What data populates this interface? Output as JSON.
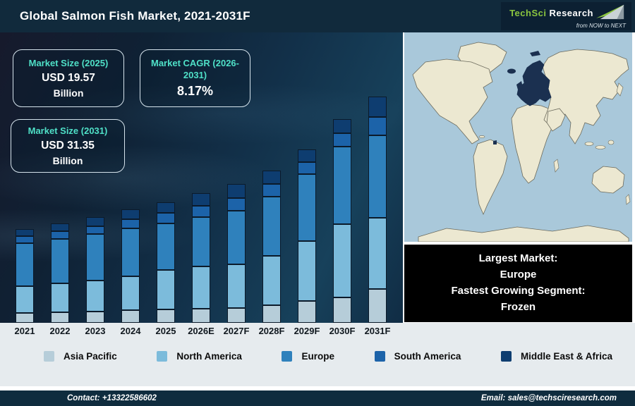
{
  "header": {
    "title": "Global Salmon Fish Market, 2021-2031F",
    "logo": {
      "brand_primary": "TechSci",
      "brand_secondary": "Research",
      "tagline": "from NOW to NEXT"
    }
  },
  "stats": {
    "market_size_2025": {
      "title": "Market Size (2025)",
      "value": "USD 19.57",
      "unit": "Billion"
    },
    "market_cagr": {
      "title": "Market CAGR (2026-2031)",
      "value": "8.17%"
    },
    "market_size_2031": {
      "title": "Market Size (2031)",
      "value": "USD 31.35",
      "unit": "Billion"
    }
  },
  "chart_data": {
    "type": "bar",
    "stacked": true,
    "title": "Global Salmon Fish Market, 2021-2031F",
    "xlabel": "",
    "ylabel": "",
    "y_axis_shown": false,
    "grid": false,
    "legend_position": "bottom",
    "values_unit": "relative height units (chart shows no numeric axis; anchors: 2025 total = USD 19.57B, 2031 total = USD 31.35B)",
    "categories": [
      "2021",
      "2022",
      "2023",
      "2024",
      "2025",
      "2026E",
      "2027F",
      "2028F",
      "2029F",
      "2030F",
      "2031F"
    ],
    "series": [
      {
        "name": "Asia Pacific",
        "color": "#b6cdd9",
        "values": [
          14,
          15,
          16,
          18,
          19,
          20,
          21,
          25,
          31,
          36,
          48
        ]
      },
      {
        "name": "North America",
        "color": "#7cbbdb",
        "values": [
          38,
          41,
          44,
          48,
          56,
          60,
          62,
          70,
          85,
          104,
          101
        ]
      },
      {
        "name": "Europe",
        "color": "#2f81bc",
        "values": [
          61,
          63,
          66,
          68,
          66,
          70,
          76,
          84,
          95,
          110,
          117
        ]
      },
      {
        "name": "South America",
        "color": "#1c63a9",
        "values": [
          10,
          11,
          11,
          13,
          15,
          16,
          18,
          18,
          17,
          19,
          26
        ]
      },
      {
        "name": "Middle East & Africa",
        "color": "#0e3d70",
        "values": [
          10,
          11,
          13,
          14,
          15,
          18,
          20,
          19,
          18,
          20,
          29
        ]
      }
    ],
    "totals": [
      133,
      141,
      150,
      161,
      171,
      184,
      197,
      216,
      246,
      289,
      321
    ]
  },
  "highlights": {
    "largest_market_label": "Largest Market:",
    "largest_market_value": "Europe",
    "fastest_segment_label": "Fastest Growing Segment:",
    "fastest_segment_value": "Frozen"
  },
  "map": {
    "highlighted_region": "Europe",
    "ocean_color": "#a9c8da",
    "land_color": "#ece8d1",
    "highlight_color": "#1b3050"
  },
  "footer": {
    "contact": "Contact: +13322586602",
    "email": "Email: sales@techsciresearch.com"
  }
}
